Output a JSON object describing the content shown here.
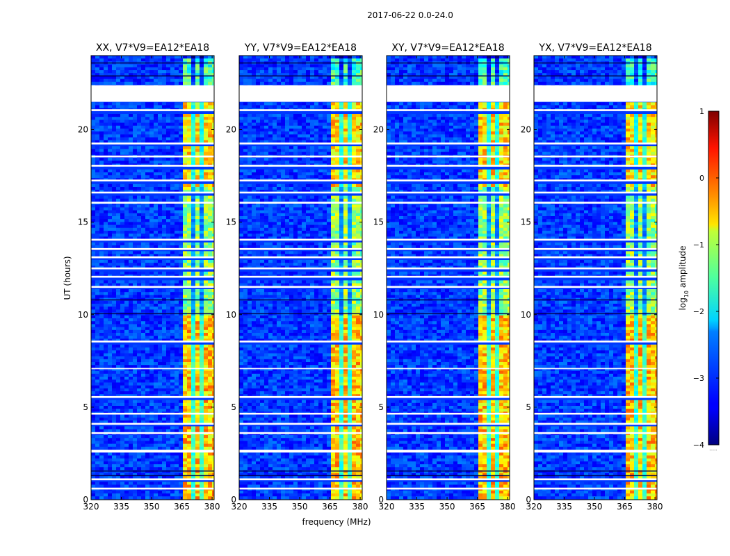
{
  "figure": {
    "suptitle": "2017-06-22 0.0-24.0",
    "xlabel": "frequency (MHz)",
    "ylabel": "UT (hours)",
    "colorbar_label_prefix": "log",
    "colorbar_label_sub": "10",
    "colorbar_label_suffix": " amplitude",
    "colorbar_footer": "......"
  },
  "chart_data": {
    "type": "heatmap",
    "colormap": "jet",
    "x_range": [
      320,
      381
    ],
    "x_ticks": [
      320,
      335,
      350,
      365,
      380
    ],
    "y_range": [
      0,
      24
    ],
    "y_ticks": [
      0,
      5,
      10,
      15,
      20
    ],
    "color_range": [
      -4,
      1
    ],
    "color_ticks": [
      1,
      0,
      -1,
      -2,
      -3,
      -4
    ],
    "color_tick_labels": [
      "1",
      "0",
      "−1",
      "−2",
      "−3",
      "−4"
    ],
    "panels": [
      {
        "title": "XX, V7*V9=EA12*EA18"
      },
      {
        "title": "YY, V7*V9=EA12*EA18"
      },
      {
        "title": "XY, V7*V9=EA12*EA18"
      },
      {
        "title": "YX, V7*V9=EA12*EA18"
      }
    ],
    "background_log_amp": -3.1,
    "active_band_mhz": [
      364,
      380
    ],
    "band_channel_gaps_mhz": [
      366.5,
      370,
      373.5,
      376.5
    ],
    "band_level_by_ut": [
      {
        "from": 0,
        "to": 10,
        "log_amp": -0.6
      },
      {
        "from": 10,
        "to": 17,
        "log_amp": -1.4
      },
      {
        "from": 17,
        "to": 21.5,
        "log_amp": -0.7
      },
      {
        "from": 21.5,
        "to": 24,
        "log_amp": -1.8
      }
    ],
    "flagged_ut_hours": [
      [
        21.5,
        22.4
      ],
      [
        0.55,
        0.65
      ],
      [
        1.05,
        1.15
      ],
      [
        2.55,
        2.7
      ],
      [
        3.55,
        3.65
      ],
      [
        4.05,
        4.15
      ],
      [
        4.6,
        4.7
      ],
      [
        5.5,
        5.6
      ],
      [
        7.05,
        7.12
      ],
      [
        8.5,
        8.6
      ],
      [
        11.45,
        11.55
      ],
      [
        12.0,
        12.1
      ],
      [
        12.45,
        12.55
      ],
      [
        13.05,
        13.15
      ],
      [
        13.5,
        13.6
      ],
      [
        14.0,
        14.1
      ],
      [
        16.0,
        16.1
      ],
      [
        16.55,
        16.65
      ],
      [
        17.2,
        17.3
      ],
      [
        18.0,
        18.1
      ],
      [
        18.5,
        18.6
      ],
      [
        19.2,
        19.3
      ],
      [
        21.0,
        21.1
      ]
    ],
    "dark_ut_hours": [
      10.05,
      10.8,
      1.3,
      1.55,
      23.6,
      22.9
    ]
  }
}
